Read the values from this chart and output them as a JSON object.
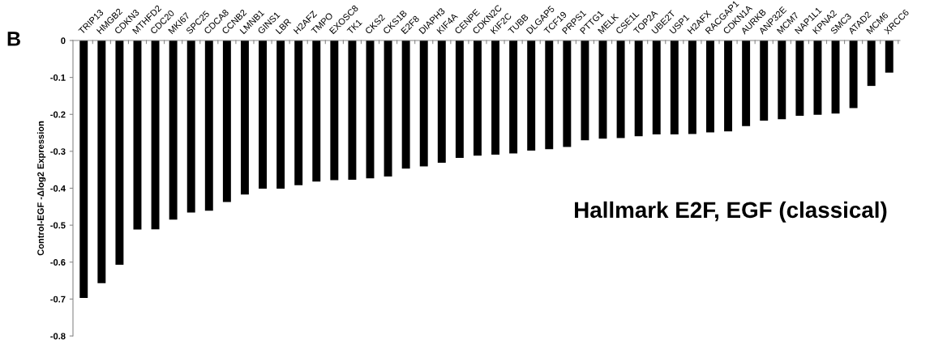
{
  "chart_data": {
    "type": "bar",
    "title": "Hallmark E2F, EGF (classical)",
    "ylabel": "Control-EGF -Δlog2 Expression",
    "annotations": [
      "B"
    ],
    "categories": [
      "TRIP13",
      "HMGB2",
      "CDKN3",
      "MTHFD2",
      "CDC20",
      "MKI67",
      "SPC25",
      "CDCA8",
      "CCNB2",
      "LMNB1",
      "GINS1",
      "LBR",
      "H2AFZ",
      "TMPO",
      "EXOSC8",
      "TK1",
      "CKS2",
      "CKS1B",
      "E2F8",
      "DIAPH3",
      "KIF4A",
      "CENPE",
      "CDKN2C",
      "KIF2C",
      "TUBB",
      "DLGAP5",
      "TCF19",
      "PRPS1",
      "PTTG1",
      "MELK",
      "CSE1L",
      "TOP2A",
      "UBE2T",
      "USP1",
      "H2AFX",
      "RACGAP1",
      "CDKN1A",
      "AURKB",
      "ANP32E",
      "MCM7",
      "NAP1L1",
      "KPNA2",
      "SMC3",
      "ATAD2",
      "MCM6",
      "XRCC6"
    ],
    "values": [
      -0.697,
      -0.657,
      -0.607,
      -0.512,
      -0.511,
      -0.485,
      -0.466,
      -0.461,
      -0.437,
      -0.417,
      -0.401,
      -0.401,
      -0.392,
      -0.382,
      -0.378,
      -0.377,
      -0.373,
      -0.368,
      -0.347,
      -0.341,
      -0.331,
      -0.318,
      -0.312,
      -0.309,
      -0.306,
      -0.298,
      -0.294,
      -0.288,
      -0.27,
      -0.266,
      -0.264,
      -0.259,
      -0.254,
      -0.254,
      -0.253,
      -0.249,
      -0.246,
      -0.232,
      -0.217,
      -0.213,
      -0.204,
      -0.201,
      -0.198,
      -0.183,
      -0.123,
      -0.087
    ],
    "color": "#000000",
    "ylim": [
      -0.8,
      0
    ],
    "yticks": [
      {
        "value": 0,
        "label": "0"
      },
      {
        "value": -0.1,
        "label": "-0.1"
      },
      {
        "value": -0.2,
        "label": "-0.2"
      },
      {
        "value": -0.3,
        "label": "-0.3"
      },
      {
        "value": -0.4,
        "label": "-0.4"
      },
      {
        "value": -0.5,
        "label": "-0.5"
      },
      {
        "value": -0.6,
        "label": "-0.6"
      },
      {
        "value": -0.7,
        "label": "-0.7"
      },
      {
        "value": -0.8,
        "label": "-0.8"
      }
    ],
    "grid": false,
    "legend": false
  }
}
